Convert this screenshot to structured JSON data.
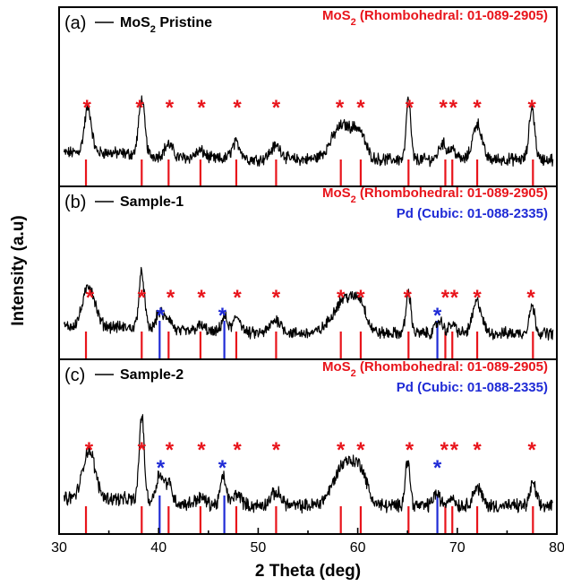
{
  "chart_data": {
    "type": "line",
    "xlabel": "2 Theta (deg)",
    "ylabel": "Intensity (a.u)",
    "xlim": [
      30,
      80
    ],
    "xticks": [
      30,
      40,
      50,
      60,
      70,
      80
    ],
    "colors": {
      "mos2": "#e8141b",
      "pd": "#1f2bd6",
      "trace": "#000000"
    },
    "panels": [
      {
        "label": "(a)",
        "series_name": "MoS",
        "series_name_sub": "2",
        "series_name_rest": " Pristine",
        "references": [
          {
            "text": "MoS",
            "sub": "2",
            "rest": " (Rhombohedral: 01-089-2905)",
            "color": "#e8141b"
          }
        ],
        "peaks": [
          {
            "x": 32.9,
            "h": 0.5,
            "w": 0.35
          },
          {
            "x": 38.3,
            "h": 0.62,
            "w": 0.3
          },
          {
            "x": 41.0,
            "h": 0.14,
            "w": 0.4
          },
          {
            "x": 44.2,
            "h": 0.08,
            "w": 0.5
          },
          {
            "x": 47.8,
            "h": 0.18,
            "w": 0.45
          },
          {
            "x": 51.8,
            "h": 0.15,
            "w": 0.55
          },
          {
            "x": 58.5,
            "h": 0.38,
            "w": 1.1
          },
          {
            "x": 60.2,
            "h": 0.22,
            "w": 0.6
          },
          {
            "x": 65.1,
            "h": 0.68,
            "w": 0.22
          },
          {
            "x": 68.5,
            "h": 0.18,
            "w": 0.35
          },
          {
            "x": 69.5,
            "h": 0.12,
            "w": 0.35
          },
          {
            "x": 72.0,
            "h": 0.4,
            "w": 0.45
          },
          {
            "x": 77.5,
            "h": 0.58,
            "w": 0.28
          }
        ],
        "mos2_lines": [
          32.7,
          38.3,
          41.0,
          44.2,
          47.8,
          51.8,
          58.3,
          60.3,
          65.1,
          68.8,
          69.5,
          72.0,
          77.6
        ],
        "pd_lines": [],
        "red_stars": [
          32.8,
          38.1,
          41.1,
          44.3,
          47.9,
          51.8,
          58.2,
          60.3,
          65.2,
          68.6,
          69.6,
          72.0,
          77.5
        ],
        "blue_stars": []
      },
      {
        "label": "(b)",
        "series_name": "Sample-1",
        "series_name_sub": "",
        "series_name_rest": "",
        "references": [
          {
            "text": "MoS",
            "sub": "2",
            "rest": " (Rhombohedral: 01-089-2905)",
            "color": "#e8141b"
          },
          {
            "text": "Pd (Cubic: 01-088-2335)",
            "sub": "",
            "rest": "",
            "color": "#1f2bd6"
          }
        ],
        "peaks": [
          {
            "x": 33.0,
            "h": 0.45,
            "w": 0.6
          },
          {
            "x": 38.3,
            "h": 0.62,
            "w": 0.28
          },
          {
            "x": 40.1,
            "h": 0.2,
            "w": 0.35
          },
          {
            "x": 41.0,
            "h": 0.14,
            "w": 0.35
          },
          {
            "x": 44.2,
            "h": 0.07,
            "w": 0.5
          },
          {
            "x": 46.6,
            "h": 0.18,
            "w": 0.3
          },
          {
            "x": 47.9,
            "h": 0.18,
            "w": 0.4
          },
          {
            "x": 51.8,
            "h": 0.15,
            "w": 0.55
          },
          {
            "x": 58.8,
            "h": 0.4,
            "w": 1.2
          },
          {
            "x": 60.3,
            "h": 0.2,
            "w": 0.55
          },
          {
            "x": 65.1,
            "h": 0.45,
            "w": 0.25
          },
          {
            "x": 68.2,
            "h": 0.14,
            "w": 0.35
          },
          {
            "x": 69.5,
            "h": 0.1,
            "w": 0.35
          },
          {
            "x": 72.0,
            "h": 0.35,
            "w": 0.45
          },
          {
            "x": 77.5,
            "h": 0.3,
            "w": 0.3
          }
        ],
        "mos2_lines": [
          32.7,
          38.3,
          41.0,
          44.2,
          47.8,
          51.8,
          58.3,
          60.3,
          65.1,
          68.8,
          69.5,
          72.0,
          77.6
        ],
        "pd_lines": [
          40.1,
          46.6,
          68.0
        ],
        "red_stars": [
          33.1,
          38.3,
          41.2,
          44.3,
          47.9,
          51.8,
          58.3,
          60.3,
          65.0,
          68.8,
          69.7,
          72.0,
          77.4
        ],
        "blue_stars": [
          40.2,
          46.4,
          68.0
        ]
      },
      {
        "label": "(c)",
        "series_name": "Sample-2",
        "series_name_sub": "",
        "series_name_rest": "",
        "references": [
          {
            "text": "MoS",
            "sub": "2",
            "rest": " (Rhombohedral: 01-089-2905)",
            "color": "#e8141b"
          },
          {
            "text": "Pd (Cubic: 01-088-2335)",
            "sub": "",
            "rest": "",
            "color": "#1f2bd6"
          }
        ],
        "peaks": [
          {
            "x": 33.0,
            "h": 0.48,
            "w": 0.6
          },
          {
            "x": 38.3,
            "h": 0.85,
            "w": 0.25
          },
          {
            "x": 40.1,
            "h": 0.28,
            "w": 0.35
          },
          {
            "x": 41.0,
            "h": 0.2,
            "w": 0.35
          },
          {
            "x": 44.2,
            "h": 0.07,
            "w": 0.5
          },
          {
            "x": 46.5,
            "h": 0.28,
            "w": 0.3
          },
          {
            "x": 47.9,
            "h": 0.12,
            "w": 0.4
          },
          {
            "x": 51.8,
            "h": 0.13,
            "w": 0.55
          },
          {
            "x": 58.9,
            "h": 0.45,
            "w": 1.2
          },
          {
            "x": 60.4,
            "h": 0.18,
            "w": 0.55
          },
          {
            "x": 65.0,
            "h": 0.45,
            "w": 0.25
          },
          {
            "x": 67.9,
            "h": 0.12,
            "w": 0.35
          },
          {
            "x": 69.4,
            "h": 0.09,
            "w": 0.35
          },
          {
            "x": 72.0,
            "h": 0.18,
            "w": 0.45
          },
          {
            "x": 77.6,
            "h": 0.22,
            "w": 0.3
          }
        ],
        "mos2_lines": [
          32.7,
          38.3,
          41.0,
          44.2,
          47.8,
          51.8,
          58.3,
          60.3,
          65.1,
          68.8,
          69.5,
          72.0,
          77.6
        ],
        "pd_lines": [
          40.1,
          46.6,
          68.0
        ],
        "red_stars": [
          33.0,
          38.3,
          41.1,
          44.3,
          47.9,
          51.8,
          58.3,
          60.3,
          65.2,
          68.7,
          69.7,
          72.0,
          77.5
        ],
        "blue_stars": [
          40.2,
          46.4,
          68.0
        ]
      }
    ]
  }
}
